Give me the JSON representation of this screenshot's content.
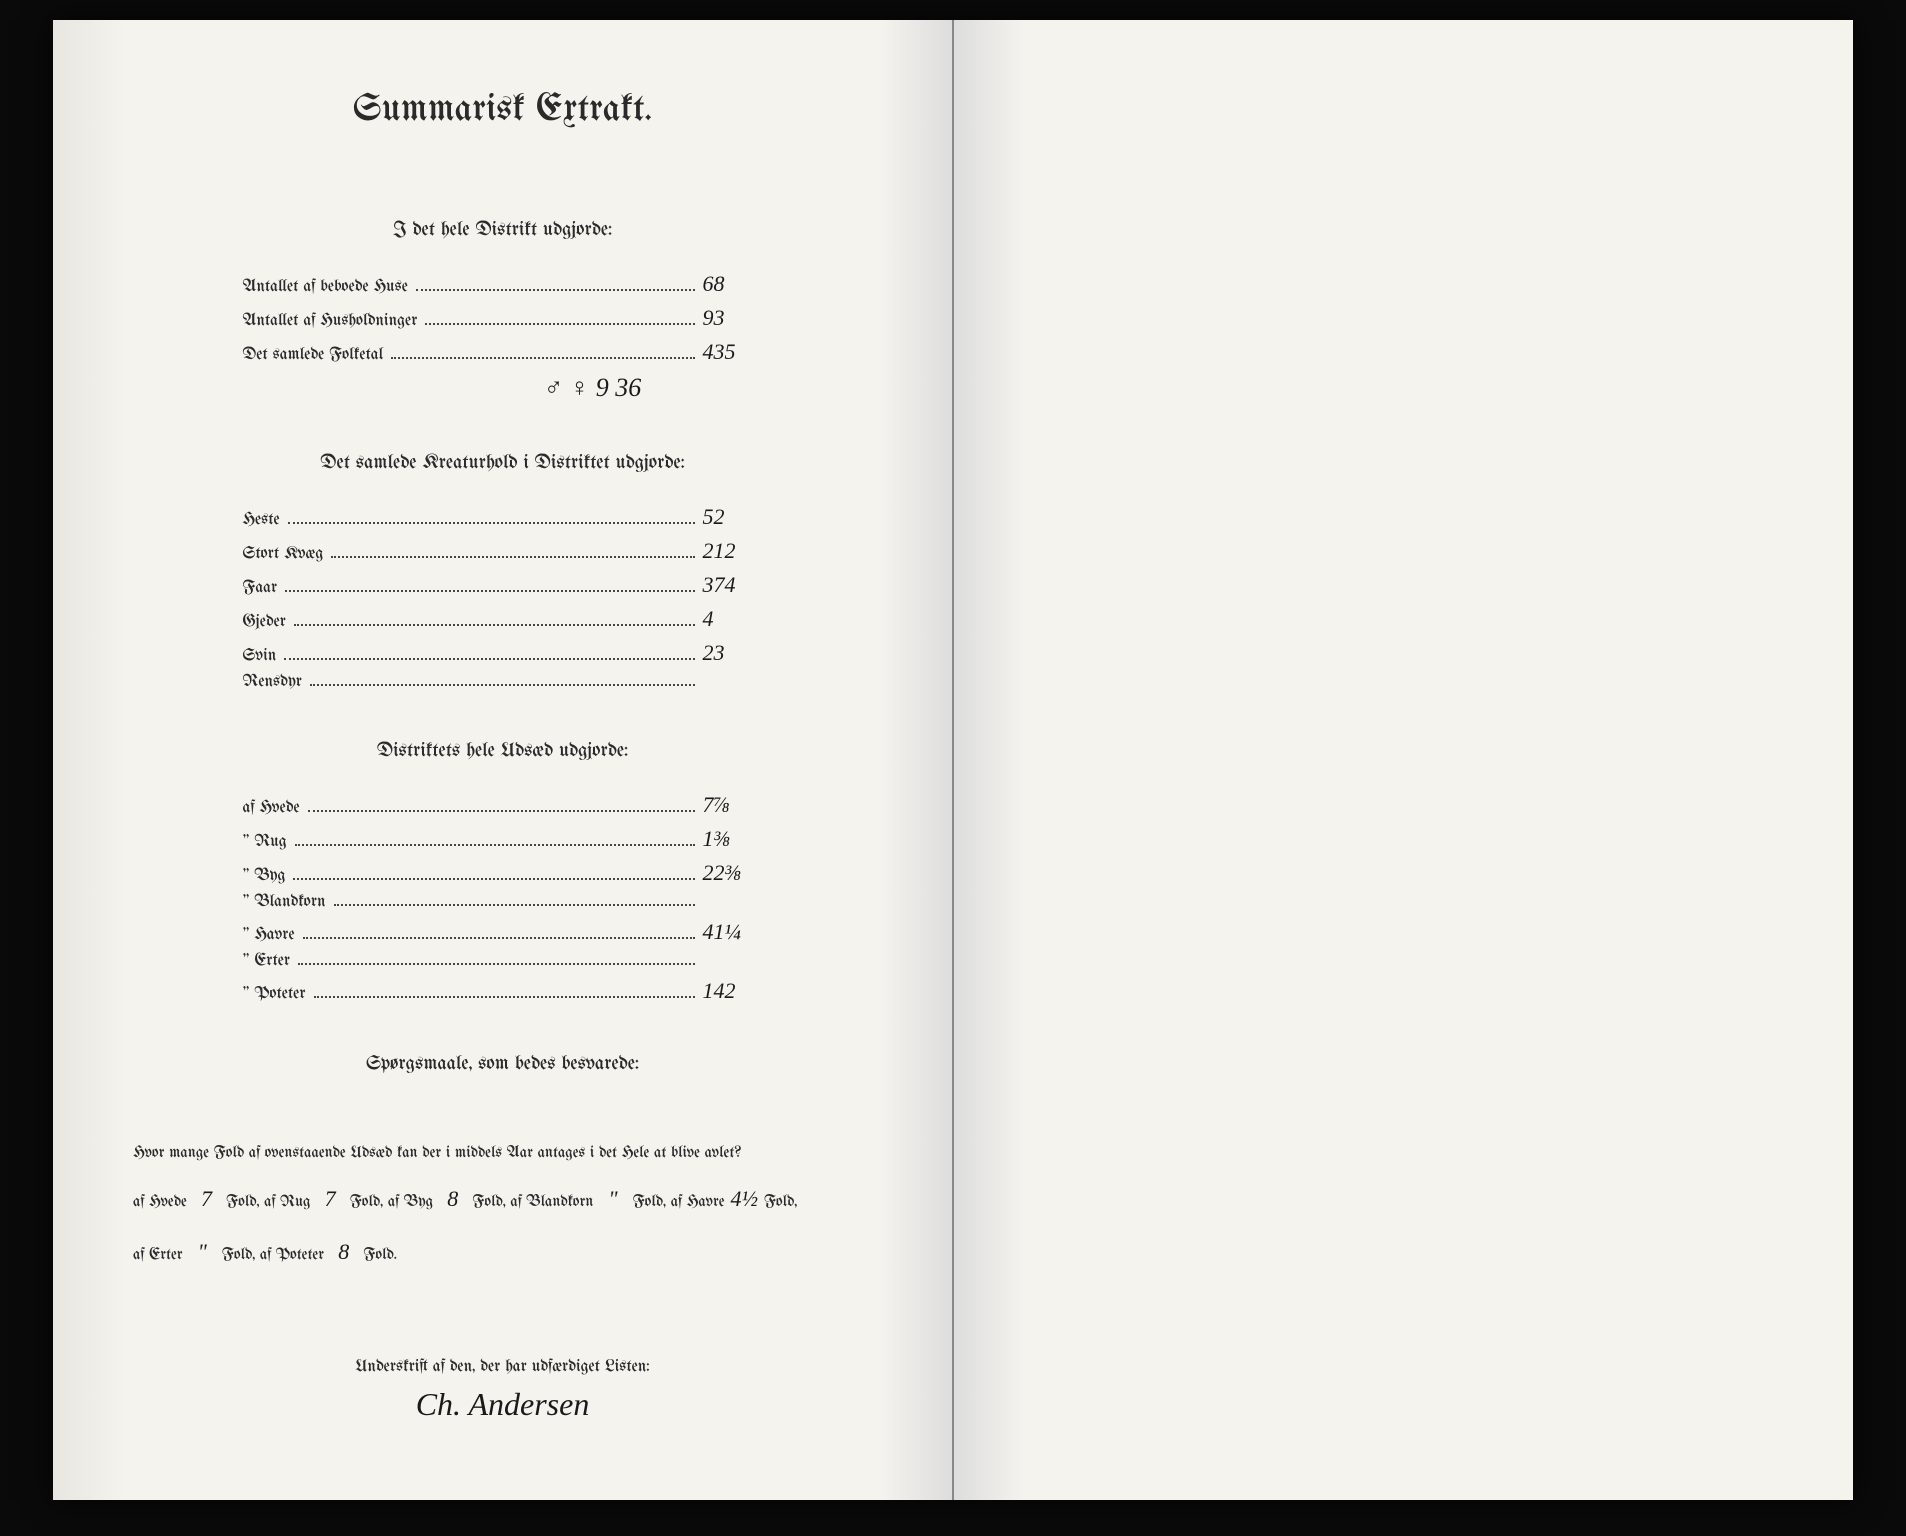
{
  "title": "Summarisk Extrakt.",
  "section1": {
    "heading": "I det hele Distrikt udgjorde:",
    "rows": [
      {
        "label": "Antallet af beboede Huse",
        "value": "68"
      },
      {
        "label": "Antallet af Husholdninger",
        "value": "93"
      },
      {
        "label": "Det samlede Folketal",
        "value": "435"
      }
    ],
    "extra_handwritten": "♂  ♀  9 36"
  },
  "section2": {
    "heading": "Det samlede Kreaturhold i Distriktet udgjorde:",
    "rows": [
      {
        "label": "Heste",
        "value": "52"
      },
      {
        "label": "Stort Kvæg",
        "value": "212"
      },
      {
        "label": "Faar",
        "value": "374"
      },
      {
        "label": "Gjeder",
        "value": "4"
      },
      {
        "label": "Svin",
        "value": "23"
      },
      {
        "label": "Rensdyr",
        "value": ""
      }
    ]
  },
  "section3": {
    "heading": "Distriktets hele Udsæd udgjorde:",
    "rows": [
      {
        "label": "af Hvede",
        "value": "7⅞"
      },
      {
        "label": "\"  Rug",
        "value": "1⅜"
      },
      {
        "label": "\"  Byg",
        "value": "22⅜"
      },
      {
        "label": "\"  Blandkorn",
        "value": ""
      },
      {
        "label": "\"  Havre",
        "value": "41¼"
      },
      {
        "label": "\"  Erter",
        "value": ""
      },
      {
        "label": "\"  Poteter",
        "value": "142"
      }
    ]
  },
  "section4": {
    "heading": "Spørgsmaale, som bedes besvarede:",
    "intro": "Hvor mange Fold af ovenstaaende Udsæd kan der i middels Aar antages i det Hele at blive avlet?",
    "items": [
      {
        "label": "af Hvede",
        "value": "7",
        "suffix": "Fold,"
      },
      {
        "label": "af Rug",
        "value": "7",
        "suffix": "Fold,"
      },
      {
        "label": "af Byg",
        "value": "8",
        "suffix": "Fold,"
      },
      {
        "label": "af Blandkorn",
        "value": "\"",
        "suffix": "Fold,"
      },
      {
        "label": "af Havre",
        "value": "4½",
        "suffix": "Fold,"
      },
      {
        "label": "af Erter",
        "value": "\"",
        "suffix": "Fold,"
      },
      {
        "label": "af Poteter",
        "value": "8",
        "suffix": "Fold."
      }
    ]
  },
  "signature": {
    "label": "Underskrift af den, der har udfærdiget Listen:",
    "name": "Ch. Andersen"
  },
  "colors": {
    "page_bg": "#f5f3ee",
    "text": "#2a2a2a",
    "handwriting": "#1a1a1a",
    "outer_bg": "#0a0a0a"
  },
  "typography": {
    "title_fontsize": 38,
    "section_fontsize": 20,
    "row_fontsize": 17,
    "handwriting_fontsize": 22
  }
}
